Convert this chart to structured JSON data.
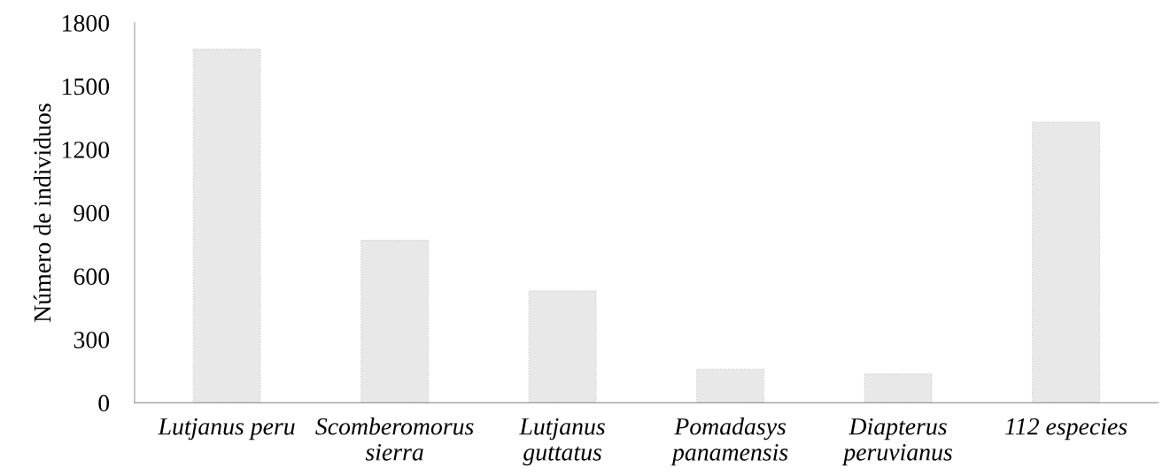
{
  "chart_data": {
    "type": "bar",
    "ylabel": "Número de individuos",
    "categories": [
      "Lutjanus peru",
      "Scomberomorus\nsierra",
      "Lutjanus\nguttatus",
      "Pomadasys\npanamensis",
      "Diapterus\nperuvianus",
      "112 especies"
    ],
    "values": [
      1675,
      770,
      530,
      160,
      137,
      1330
    ],
    "color": "#e8e8e8",
    "ylim": [
      0,
      1800
    ],
    "yticks": [
      0,
      300,
      600,
      900,
      1200,
      1500,
      1800
    ],
    "grid": false,
    "legend": false
  }
}
